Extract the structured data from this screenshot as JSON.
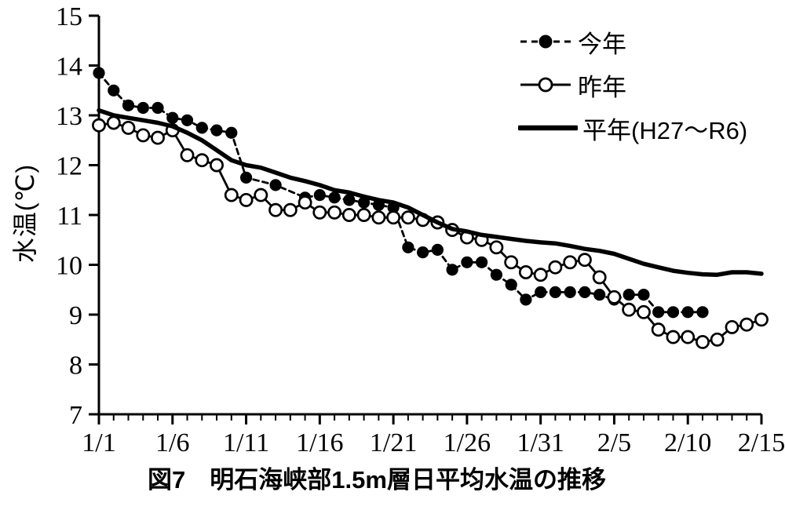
{
  "figure": {
    "caption": "図7　明石海峡部1.5m層日平均水温の推移",
    "background_color": "#ffffff",
    "ink_color": "#000000"
  },
  "chart_data": {
    "type": "line",
    "title": "図7　明石海峡部1.5m層日平均水温の推移",
    "xlabel": "",
    "ylabel": "水温(℃)",
    "ylim": [
      7,
      15
    ],
    "y_ticks": [
      7,
      8,
      9,
      10,
      11,
      12,
      13,
      14,
      15
    ],
    "x_major_tick_labels": [
      "1/1",
      "1/6",
      "1/11",
      "1/16",
      "1/21",
      "1/26",
      "1/31",
      "2/5",
      "2/10",
      "2/15"
    ],
    "x_major_tick_every": 5,
    "grid": false,
    "legend_position": "top-right",
    "x": [
      "1/1",
      "1/2",
      "1/3",
      "1/4",
      "1/5",
      "1/6",
      "1/7",
      "1/8",
      "1/9",
      "1/10",
      "1/11",
      "1/12",
      "1/13",
      "1/14",
      "1/15",
      "1/16",
      "1/17",
      "1/18",
      "1/19",
      "1/20",
      "1/21",
      "1/22",
      "1/23",
      "1/24",
      "1/25",
      "1/26",
      "1/27",
      "1/28",
      "1/29",
      "1/30",
      "1/31",
      "2/1",
      "2/2",
      "2/3",
      "2/4",
      "2/5",
      "2/6",
      "2/7",
      "2/8",
      "2/9",
      "2/10",
      "2/11",
      "2/12",
      "2/13",
      "2/14",
      "2/15"
    ],
    "series": [
      {
        "name": "今年",
        "data_name": "series-this-year",
        "marker": "filled-circle",
        "line": "dashed",
        "color": "#000000",
        "values": [
          13.85,
          13.5,
          13.2,
          13.15,
          13.15,
          12.95,
          12.9,
          12.75,
          12.7,
          12.65,
          11.75,
          null,
          11.6,
          null,
          11.35,
          11.4,
          11.35,
          11.3,
          11.25,
          11.2,
          11.15,
          10.35,
          10.25,
          10.3,
          9.9,
          10.05,
          10.05,
          9.8,
          9.6,
          9.3,
          9.45,
          9.45,
          9.45,
          9.45,
          9.4,
          9.3,
          9.4,
          9.4,
          9.05,
          9.05,
          9.05,
          9.05,
          null,
          null,
          null,
          null
        ]
      },
      {
        "name": "昨年",
        "data_name": "series-last-year",
        "marker": "open-circle",
        "line": "solid",
        "color": "#000000",
        "values": [
          12.8,
          12.85,
          12.75,
          12.6,
          12.55,
          12.7,
          12.2,
          12.1,
          12.0,
          11.4,
          11.3,
          11.4,
          11.1,
          11.1,
          11.25,
          11.05,
          11.05,
          11.0,
          11.0,
          10.95,
          10.95,
          10.95,
          10.9,
          10.85,
          10.7,
          10.55,
          10.5,
          10.35,
          10.05,
          9.85,
          9.8,
          9.95,
          10.05,
          10.1,
          9.75,
          9.35,
          9.1,
          9.05,
          8.7,
          8.55,
          8.55,
          8.45,
          8.5,
          8.75,
          8.8,
          8.9
        ]
      },
      {
        "name": "平年(H27～R6)",
        "data_name": "series-normal-year",
        "marker": "none",
        "line": "thick",
        "color": "#000000",
        "values": [
          13.1,
          13.0,
          12.95,
          12.9,
          12.85,
          12.78,
          12.65,
          12.5,
          12.3,
          12.1,
          12.0,
          11.95,
          11.85,
          11.75,
          11.68,
          11.6,
          11.5,
          11.45,
          11.37,
          11.3,
          11.25,
          11.15,
          11.0,
          10.85,
          10.72,
          10.67,
          10.6,
          10.56,
          10.52,
          10.48,
          10.45,
          10.43,
          10.38,
          10.32,
          10.28,
          10.22,
          10.12,
          10.02,
          9.95,
          9.88,
          9.84,
          9.81,
          9.8,
          9.85,
          9.85,
          9.82
        ]
      }
    ]
  }
}
